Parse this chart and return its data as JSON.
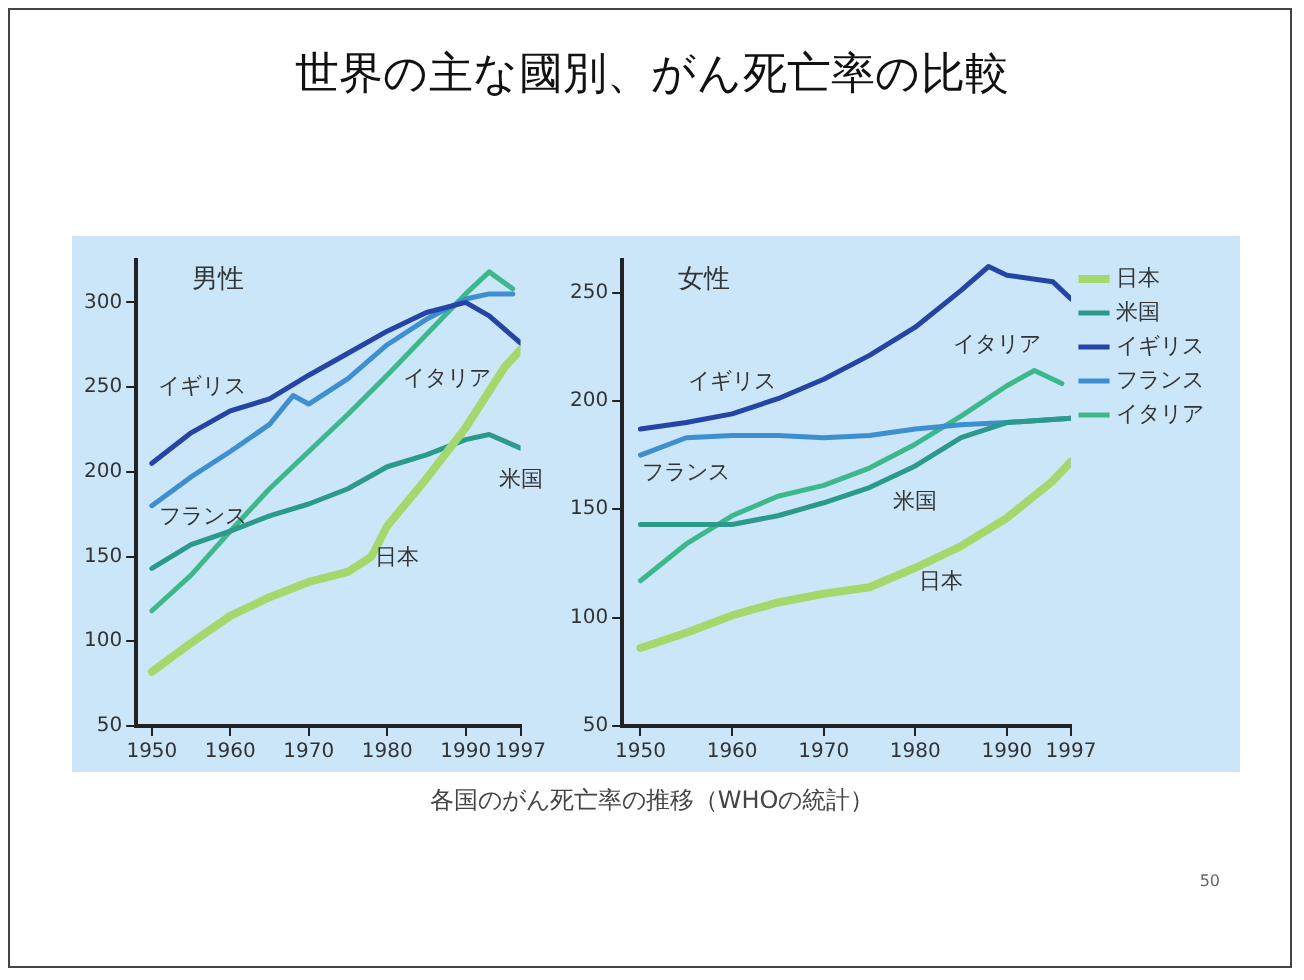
{
  "chart_data": [
    {
      "type": "line",
      "title": "男性",
      "annotations": [
        "世界の主な國別、がん死亡率の比較",
        "各国のがん死亡率の推移（WHOの統計）",
        "50"
      ],
      "xlim": [
        1948,
        1997
      ],
      "xticks": [
        1950,
        1960,
        1970,
        1980,
        1990,
        1997
      ],
      "ylim": [
        50,
        325
      ],
      "yticks": [
        50,
        100,
        150,
        200,
        250,
        300
      ],
      "grid": false,
      "legend": false,
      "series": [
        {
          "name": "日本",
          "color": "#a5d86a",
          "x": [
            1950,
            1955,
            1960,
            1965,
            1970,
            1975,
            1978,
            1980,
            1985,
            1990,
            1995,
            1997
          ],
          "values": [
            82,
            99,
            115,
            126,
            135,
            141,
            150,
            168,
            196,
            226,
            262,
            272
          ]
        },
        {
          "name": "米国",
          "color": "#2b9a8a",
          "x": [
            1950,
            1955,
            1960,
            1965,
            1970,
            1975,
            1980,
            1985,
            1990,
            1993,
            1997
          ],
          "values": [
            143,
            157,
            165,
            174,
            181,
            190,
            203,
            210,
            219,
            222,
            214
          ]
        },
        {
          "name": "イギリス",
          "color": "#2544a6",
          "x": [
            1950,
            1955,
            1960,
            1965,
            1970,
            1975,
            1980,
            1985,
            1990,
            1993,
            1997
          ],
          "values": [
            205,
            223,
            236,
            243,
            257,
            270,
            283,
            294,
            300,
            292,
            276
          ]
        },
        {
          "name": "フランス",
          "color": "#3d8fd0",
          "x": [
            1950,
            1955,
            1960,
            1965,
            1968,
            1970,
            1975,
            1980,
            1985,
            1990,
            1993,
            1996
          ],
          "values": [
            180,
            197,
            212,
            228,
            245,
            240,
            255,
            275,
            290,
            302,
            305,
            305
          ]
        },
        {
          "name": "イタリア",
          "color": "#3cb88a",
          "x": [
            1950,
            1955,
            1960,
            1965,
            1970,
            1975,
            1980,
            1985,
            1990,
            1993,
            1996
          ],
          "values": [
            118,
            139,
            165,
            190,
            212,
            234,
            257,
            281,
            305,
            318,
            308
          ]
        }
      ]
    },
    {
      "type": "line",
      "title": "女性",
      "xlim": [
        1948,
        1997
      ],
      "xticks": [
        1950,
        1960,
        1970,
        1980,
        1990,
        1997
      ],
      "ylim": [
        50,
        265
      ],
      "yticks": [
        50,
        100,
        150,
        200,
        250
      ],
      "grid": false,
      "legend": "right",
      "series": [
        {
          "name": "日本",
          "color": "#a5d86a",
          "x": [
            1950,
            1955,
            1960,
            1965,
            1970,
            1975,
            1980,
            1985,
            1990,
            1995,
            1997
          ],
          "values": [
            86,
            93,
            101,
            107,
            111,
            114,
            123,
            133,
            146,
            163,
            172
          ]
        },
        {
          "name": "米国",
          "color": "#2b9a8a",
          "x": [
            1950,
            1955,
            1960,
            1965,
            1970,
            1975,
            1980,
            1985,
            1990,
            1997
          ],
          "values": [
            143,
            143,
            143,
            147,
            153,
            160,
            170,
            183,
            190,
            192
          ]
        },
        {
          "name": "イギリス",
          "color": "#2544a6",
          "x": [
            1950,
            1955,
            1960,
            1965,
            1970,
            1975,
            1980,
            1985,
            1988,
            1990,
            1995,
            1997
          ],
          "values": [
            187,
            190,
            194,
            201,
            210,
            221,
            234,
            251,
            262,
            258,
            255,
            247
          ]
        },
        {
          "name": "フランス",
          "color": "#3d8fd0",
          "x": [
            1950,
            1955,
            1960,
            1965,
            1970,
            1975,
            1980,
            1985,
            1990,
            1997
          ],
          "values": [
            175,
            183,
            184,
            184,
            183,
            184,
            187,
            189,
            190,
            192
          ]
        },
        {
          "name": "イタリア",
          "color": "#3cb88a",
          "x": [
            1950,
            1955,
            1960,
            1965,
            1970,
            1975,
            1980,
            1985,
            1990,
            1993,
            1996
          ],
          "values": [
            117,
            134,
            147,
            156,
            161,
            169,
            180,
            193,
            207,
            214,
            208
          ]
        }
      ]
    }
  ]
}
